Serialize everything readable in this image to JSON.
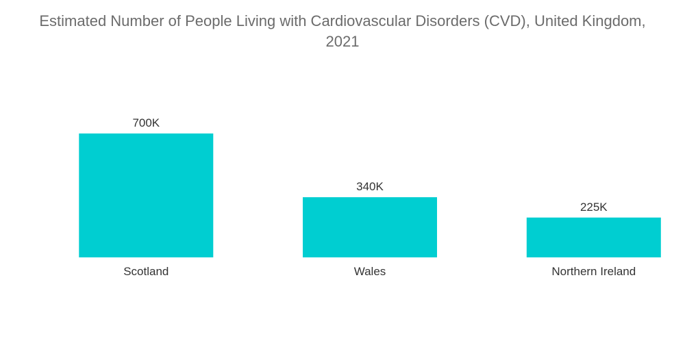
{
  "chart_data": {
    "type": "bar",
    "title": "Estimated Number of People Living with Cardiovascular Disorders (CVD), United Kingdom,\n2021",
    "categories": [
      "Scotland",
      "Wales",
      "Northern Ireland"
    ],
    "values": [
      700000,
      340000,
      225000
    ],
    "data_labels": [
      "700K",
      "340K",
      "225K"
    ],
    "xlabel": "",
    "ylabel": "",
    "ylim": [
      0,
      700000
    ],
    "grid": false,
    "legend": "none",
    "bar_color": "#00ced1"
  }
}
